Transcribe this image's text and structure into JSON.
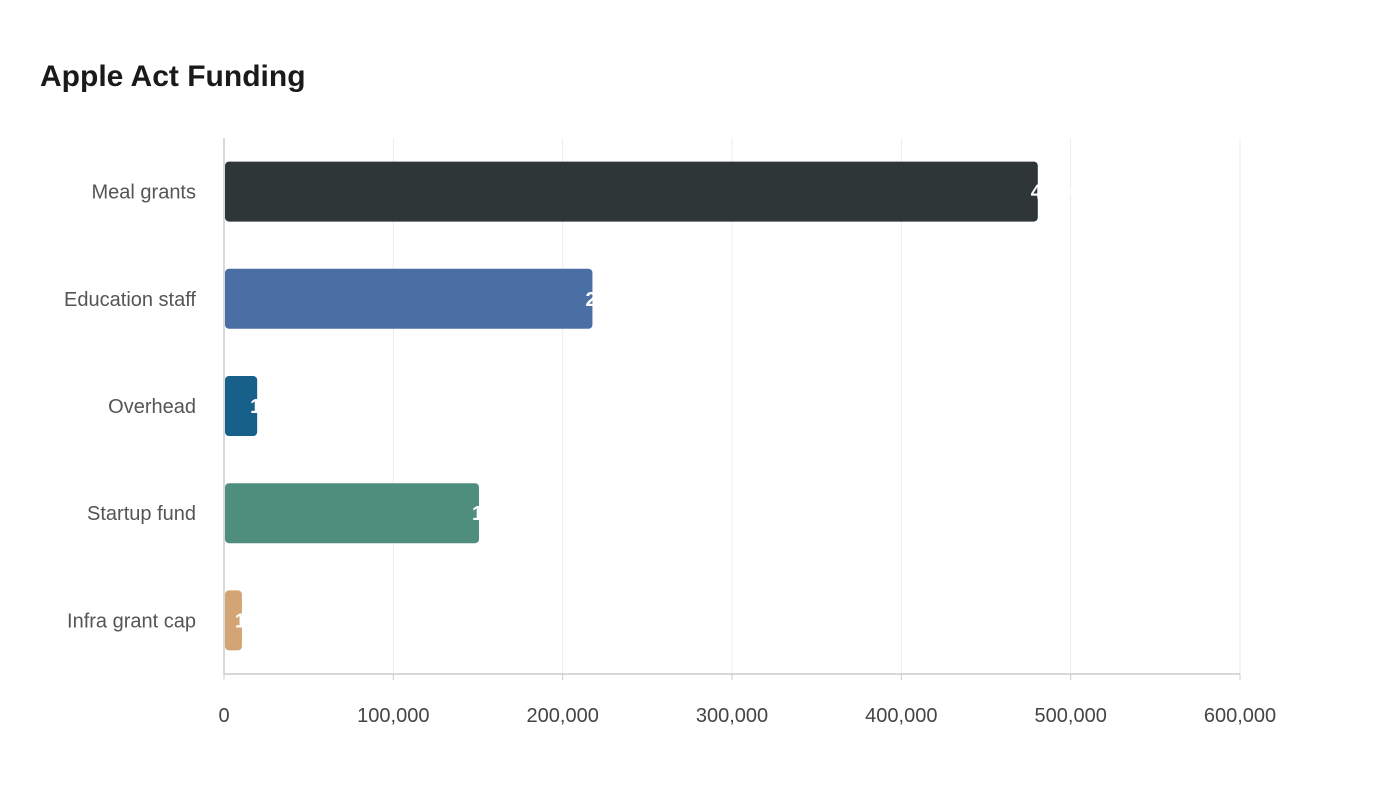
{
  "chart_data": {
    "type": "bar",
    "orientation": "horizontal",
    "title": "Apple Act Funding",
    "categories": [
      "Meal grants",
      "Education staff",
      "Overhead",
      "Startup fund",
      "Infra grant cap"
    ],
    "values": [
      480000,
      217000,
      19000,
      150000,
      10000
    ],
    "colors": [
      "#2e3638",
      "#4a6fa5",
      "#17608a",
      "#4f8d7c",
      "#d4a574"
    ],
    "xlim": [
      0,
      600000
    ],
    "xticks": [
      0,
      100000,
      200000,
      300000,
      400000,
      500000,
      600000
    ],
    "xtick_labels": [
      "0",
      "100,000",
      "200,000",
      "300,000",
      "400,000",
      "500,000",
      "600,000"
    ],
    "grid": true,
    "xlabel": "",
    "ylabel": ""
  }
}
